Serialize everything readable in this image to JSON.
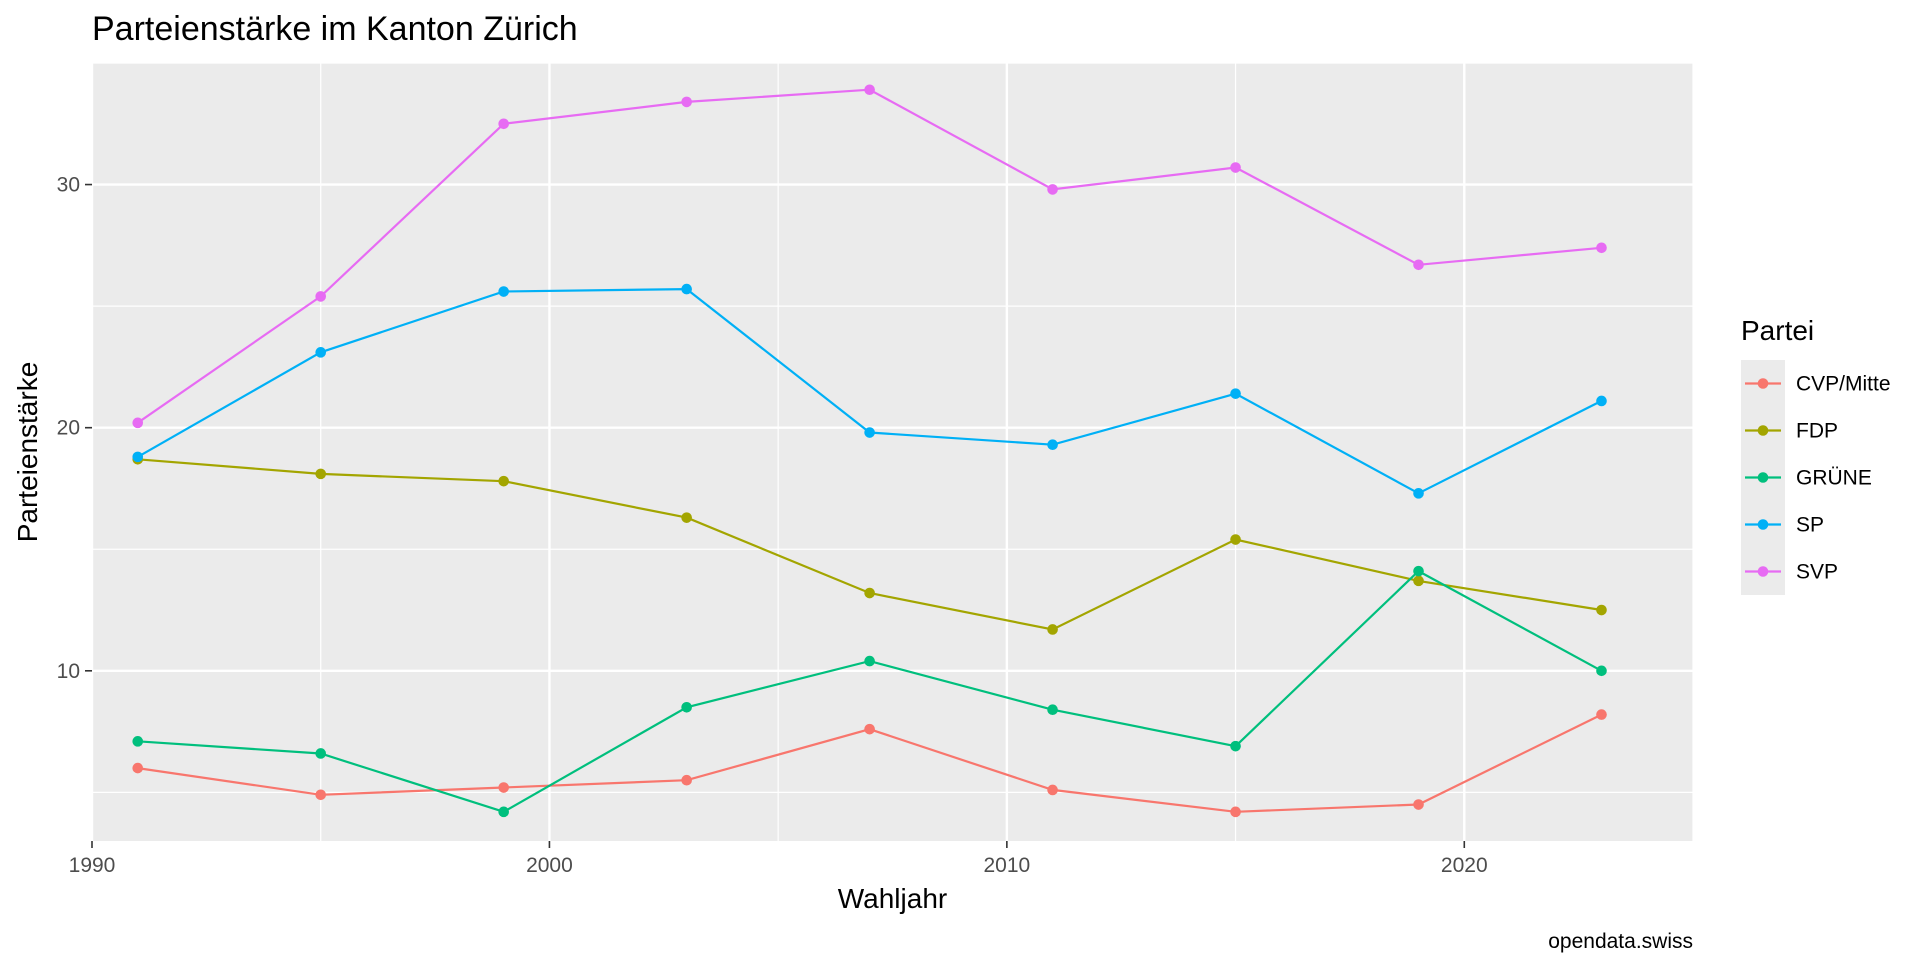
{
  "chart_data": {
    "type": "line",
    "title": "Parteienstärke im Kanton Zürich",
    "xlabel": "Wahljahr",
    "ylabel": "Parteienstärke",
    "caption": "opendata.swiss",
    "legend_title": "Partei",
    "legend_position": "right",
    "grid": true,
    "xlim": [
      1990,
      2025
    ],
    "ylim": [
      3,
      35
    ],
    "x_ticks": [
      1990,
      2000,
      2010,
      2020
    ],
    "y_ticks": [
      10,
      20,
      30
    ],
    "x": [
      1991,
      1995,
      1999,
      2003,
      2007,
      2011,
      2015,
      2019,
      2023
    ],
    "series": [
      {
        "name": "CVP/Mitte",
        "color": "#F8766D",
        "values": [
          6.0,
          4.9,
          5.2,
          5.5,
          7.6,
          5.1,
          4.2,
          4.5,
          8.2
        ]
      },
      {
        "name": "FDP",
        "color": "#A3A500",
        "values": [
          18.7,
          18.1,
          17.8,
          16.3,
          13.2,
          11.7,
          15.4,
          13.7,
          12.5
        ]
      },
      {
        "name": "GRÜNE",
        "color": "#00BF7D",
        "values": [
          7.1,
          6.6,
          4.2,
          8.5,
          10.4,
          8.4,
          6.9,
          14.1,
          10.0
        ]
      },
      {
        "name": "SP",
        "color": "#00B0F6",
        "values": [
          18.8,
          23.1,
          25.6,
          25.7,
          19.8,
          19.3,
          21.4,
          17.3,
          21.1
        ]
      },
      {
        "name": "SVP",
        "color": "#E76BF3",
        "values": [
          20.2,
          25.4,
          32.5,
          33.4,
          33.9,
          29.8,
          30.7,
          26.7,
          27.4
        ]
      }
    ]
  }
}
